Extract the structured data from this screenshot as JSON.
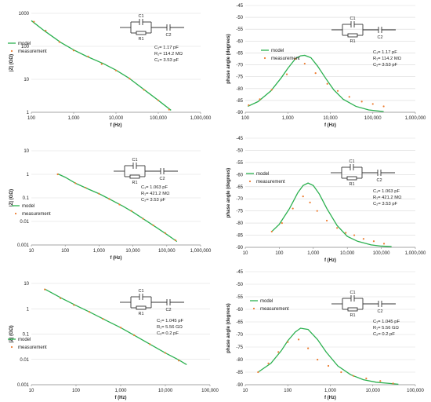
{
  "legend": {
    "model": "model",
    "measurement": "measurement"
  },
  "colors": {
    "model": "#2bb04f",
    "measurement": "#ed7d31",
    "axis": "#888888",
    "text": "#222222",
    "grid": "#d9d9d9",
    "circuit": "#333333"
  },
  "circuit_labels": {
    "c1": "C1",
    "r1": "R1",
    "c2": "C2"
  },
  "chart_data": [
    {
      "type": "line",
      "xlabel": "f (Hz)",
      "ylabel": "|Z| (GΩ)",
      "xscale": "log",
      "yscale": "log",
      "xlim": [
        100,
        1000000
      ],
      "ylim": [
        1,
        1000
      ],
      "xticks": [
        "100",
        "1,000",
        "10,000",
        "100,000",
        "1,000,000"
      ],
      "yticks": [
        "1",
        "10",
        "100",
        "1000"
      ],
      "grid": "horizontal",
      "legend_position": "center-left",
      "params": [
        "C₁= 1.17 pF",
        "R₁= 114.2 MΩ",
        "C₂= 3.53 pF"
      ],
      "series": [
        {
          "name": "model",
          "kind": "line",
          "x": [
            100,
            200,
            500,
            1000,
            2000,
            5000,
            10000,
            20000,
            50000,
            100000,
            200000
          ],
          "y": [
            600,
            300,
            130,
            78,
            50,
            30,
            19,
            11,
            4.5,
            2.3,
            1.15
          ]
        },
        {
          "name": "measurement",
          "kind": "scatter",
          "x": [
            115,
            218,
            460,
            1000,
            2200,
            4600,
            10000,
            21000,
            46000,
            100000,
            180000
          ],
          "y": [
            560,
            300,
            135,
            75,
            49,
            29,
            18.5,
            10.5,
            4.8,
            2.3,
            1.2
          ]
        }
      ]
    },
    {
      "type": "line",
      "xlabel": "f (Hz)",
      "ylabel": "phase angle (degrees)",
      "xscale": "log",
      "yscale": "linear",
      "xlim": [
        100,
        1000000
      ],
      "ylim": [
        -90,
        -45
      ],
      "xticks": [
        "100",
        "1,000",
        "10,000",
        "100,000",
        "1,000,000"
      ],
      "yticks": [
        "-45",
        "-50",
        "-55",
        "-60",
        "-65",
        "-70",
        "-75",
        "-80",
        "-85",
        "-90"
      ],
      "grid": "horizontal",
      "legend_position": "top-right",
      "params": [
        "C₁= 1.17 pF",
        "R₁= 114.2 MΩ",
        "C₂= 3.53 pF"
      ],
      "series": [
        {
          "name": "model",
          "kind": "line",
          "x": [
            115,
            200,
            400,
            700,
            1000,
            1500,
            2000,
            2500,
            3500,
            5000,
            8000,
            12000,
            20000,
            40000,
            80000,
            180000
          ],
          "y": [
            -87.5,
            -85.5,
            -81,
            -75.5,
            -71.5,
            -67.5,
            -66.2,
            -66,
            -67,
            -70.5,
            -76,
            -80.5,
            -84.5,
            -87.5,
            -89,
            -89.7
          ]
        },
        {
          "name": "measurement",
          "kind": "scatter",
          "x": [
            120,
            220,
            420,
            950,
            1500,
            2500,
            4500,
            8500,
            15000,
            28000,
            55000,
            100000,
            180000
          ],
          "y": [
            -87,
            -84.5,
            -80.5,
            -74,
            -67.5,
            -69.5,
            -73.5,
            -78,
            -81,
            -83.5,
            -85.5,
            -86.5,
            -87.5
          ]
        }
      ]
    },
    {
      "type": "line",
      "xlabel": "f (Hz)",
      "ylabel": "|Z| (GΩ)",
      "xscale": "log",
      "yscale": "log",
      "xlim": [
        10,
        1000000
      ],
      "ylim": [
        0.001,
        10
      ],
      "xticks": [
        "10",
        "100",
        "1,000",
        "10,000",
        "100,000",
        "1,000,000"
      ],
      "yticks": [
        "0.001",
        "0.01",
        "0.1",
        "1",
        "10"
      ],
      "grid": "horizontal",
      "legend_position": "center-left",
      "params": [
        "C₁= 1.063 pF",
        "R₁= 421.2 MΩ",
        "C₂= 3.53 pF"
      ],
      "series": [
        {
          "name": "model",
          "kind": "line",
          "x": [
            60,
            100,
            200,
            500,
            1000,
            2000,
            5000,
            10000,
            20000,
            50000,
            100000,
            200000
          ],
          "y": [
            1.05,
            0.75,
            0.42,
            0.23,
            0.15,
            0.09,
            0.045,
            0.025,
            0.013,
            0.0055,
            0.0028,
            0.0014
          ]
        },
        {
          "name": "measurement",
          "kind": "scatter",
          "x": [
            60,
            200,
            400,
            1000,
            2000,
            4000,
            9000,
            20000,
            40000,
            90000,
            180000
          ],
          "y": [
            1.0,
            0.42,
            0.27,
            0.15,
            0.09,
            0.052,
            0.028,
            0.013,
            0.0068,
            0.0032,
            0.0016
          ]
        }
      ]
    },
    {
      "type": "line",
      "xlabel": "f (Hz)",
      "ylabel": "phase angle (degrees)",
      "xscale": "log",
      "yscale": "linear",
      "xlim": [
        10,
        1000000
      ],
      "ylim": [
        -90,
        -45
      ],
      "xticks": [
        "10",
        "100",
        "1,000",
        "10,000",
        "100,000",
        "1,000,000"
      ],
      "yticks": [
        "-45",
        "-50",
        "-55",
        "-60",
        "-65",
        "-70",
        "-75",
        "-80",
        "-85",
        "-90"
      ],
      "grid": "horizontal",
      "legend_position": "top-center",
      "params": [
        "C₁= 1.063 pF",
        "R₁= 421.2 MΩ",
        "C₂= 3.53 pF"
      ],
      "series": [
        {
          "name": "model",
          "kind": "line",
          "x": [
            60,
            100,
            200,
            350,
            500,
            700,
            1000,
            1500,
            2500,
            5000,
            10000,
            20000,
            50000,
            100000,
            200000
          ],
          "y": [
            -83.5,
            -80.5,
            -74,
            -67.5,
            -64.5,
            -63.5,
            -64.5,
            -68,
            -74,
            -81,
            -85.5,
            -87.5,
            -89,
            -89.5,
            -89.7
          ]
        },
        {
          "name": "measurement",
          "kind": "scatter",
          "x": [
            60,
            120,
            250,
            500,
            800,
            1300,
            2500,
            5000,
            9000,
            16000,
            30000,
            60000,
            120000
          ],
          "y": [
            -83.5,
            -80,
            -74,
            -69,
            -71.5,
            -75,
            -79,
            -82,
            -84,
            -85,
            -86.5,
            -87.5,
            -88.5
          ]
        }
      ]
    },
    {
      "type": "line",
      "xlabel": "f (Hz)",
      "ylabel": "|Z| (GΩ)",
      "xscale": "log",
      "yscale": "log",
      "xlim": [
        10,
        100000
      ],
      "ylim": [
        0.001,
        10
      ],
      "xticks": [
        "10",
        "100",
        "1,000",
        "10,000",
        "100,000"
      ],
      "yticks": [
        "0.001",
        "0.01",
        "0.1",
        "1",
        "10"
      ],
      "grid": "horizontal",
      "legend_position": "center-left",
      "params": [
        "C₁= 1.045 pF",
        "R₁= 5.56 GΩ",
        "C₂= 0.2 pF"
      ],
      "series": [
        {
          "name": "model",
          "kind": "line",
          "x": [
            20,
            50,
            100,
            200,
            500,
            1000,
            2000,
            5000,
            10000,
            20000,
            30000
          ],
          "y": [
            6,
            2.5,
            1.35,
            0.75,
            0.33,
            0.18,
            0.09,
            0.036,
            0.018,
            0.0095,
            0.0062
          ]
        },
        {
          "name": "measurement",
          "kind": "scatter",
          "x": [
            20,
            45,
            90,
            200,
            400,
            1000,
            2000,
            4500,
            10000,
            20000
          ],
          "y": [
            5.8,
            2.6,
            1.4,
            0.75,
            0.4,
            0.18,
            0.09,
            0.04,
            0.018,
            0.009
          ]
        }
      ]
    },
    {
      "type": "line",
      "xlabel": "f (Hz)",
      "ylabel": "phase angle (degrees)",
      "xscale": "log",
      "yscale": "linear",
      "xlim": [
        10,
        100000
      ],
      "ylim": [
        -90,
        -45
      ],
      "xticks": [
        "10",
        "100",
        "1,000",
        "10,000",
        "100,000"
      ],
      "yticks": [
        "-45",
        "-50",
        "-55",
        "-60",
        "-65",
        "-70",
        "-75",
        "-80",
        "-85",
        "-90"
      ],
      "grid": "horizontal",
      "legend_position": "top-center",
      "params": [
        "C₁= 1.045 pF",
        "R₁= 5.56 GΩ",
        "C₂= 0.2 pF"
      ],
      "series": [
        {
          "name": "model",
          "kind": "line",
          "x": [
            20,
            40,
            70,
            100,
            150,
            200,
            300,
            500,
            800,
            1500,
            3000,
            6000,
            12000,
            25000,
            40000
          ],
          "y": [
            -85,
            -81.5,
            -76.5,
            -72.5,
            -69,
            -67.5,
            -68,
            -72,
            -77,
            -82.5,
            -86,
            -88,
            -89,
            -89.5,
            -89.8
          ]
        },
        {
          "name": "measurement",
          "kind": "scatter",
          "x": [
            20,
            35,
            60,
            100,
            180,
            300,
            500,
            900,
            1800,
            3500,
            7000,
            15000,
            30000
          ],
          "y": [
            -85,
            -81.5,
            -77,
            -73,
            -72,
            -75.5,
            -80,
            -82.5,
            -85,
            -86.5,
            -87.5,
            -88.5,
            -89.5
          ]
        }
      ]
    }
  ]
}
